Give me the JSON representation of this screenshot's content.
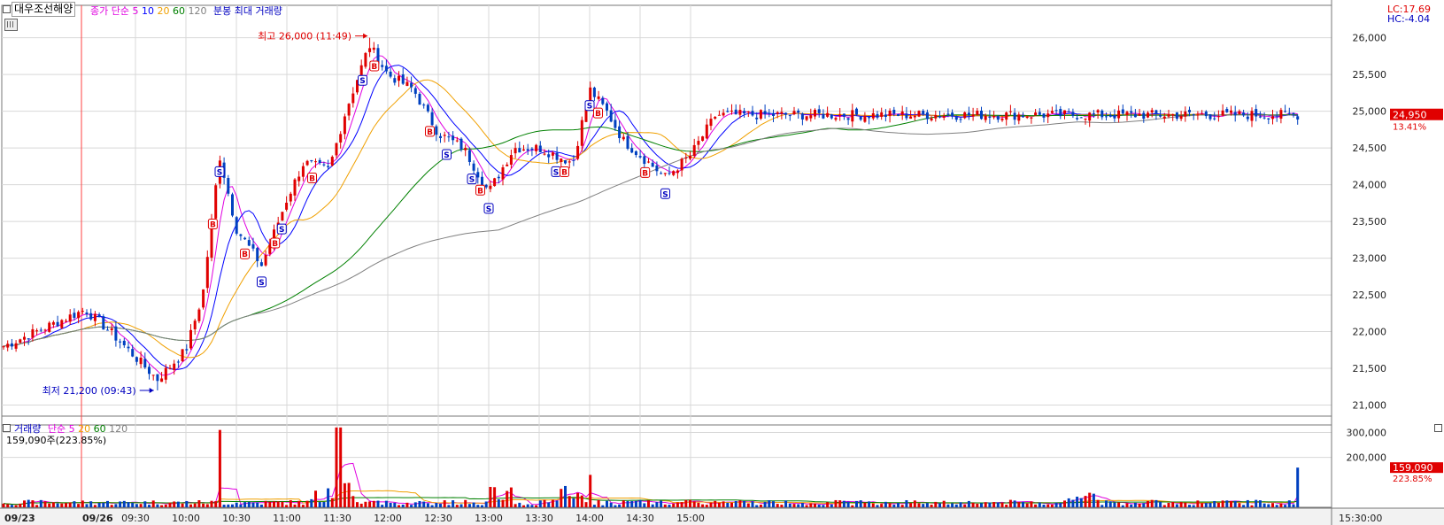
{
  "header": {
    "stock_name": "대우조선해양",
    "ma_label": "종가 단순",
    "ma_periods": [
      "5",
      "10",
      "20",
      "60",
      "120"
    ],
    "ma_colors": [
      "#e000e0",
      "#0000ff",
      "#f0a000",
      "#008000",
      "#808080"
    ],
    "tail": "분봉 최대 거래량",
    "lc": "LC:17.69",
    "hc": "HC:-4.04"
  },
  "volume_header": {
    "label": "거래량",
    "ma_label": "단순",
    "ma_periods": [
      "5",
      "20",
      "60",
      "120"
    ],
    "ma_colors": [
      "#e000e0",
      "#f0a000",
      "#008000",
      "#808080"
    ],
    "value_text": "159,090주(223.85%)"
  },
  "price_axis": {
    "ticks": [
      "26,000",
      "25,500",
      "25,000",
      "24,500",
      "24,000",
      "23,500",
      "23,000",
      "22,500",
      "22,000",
      "21,500",
      "21,000"
    ],
    "current": "24,950",
    "current_pct": "13.41%"
  },
  "volume_axis": {
    "ticks": [
      "300,000",
      "200,000"
    ],
    "current": "159,090",
    "current_pct": "223.85%"
  },
  "time_axis": {
    "labels": [
      "09/23",
      "09/26",
      "09:30",
      "10:00",
      "10:30",
      "11:00",
      "11:30",
      "12:00",
      "12:30",
      "13:00",
      "13:30",
      "14:00",
      "14:30",
      "15:00",
      "15:30:00"
    ]
  },
  "annotations": {
    "high": "최고 26,000 (11:49)",
    "low": "최저 21,200 (09:43)"
  },
  "colors": {
    "up": "#e00000",
    "down": "#0040c0",
    "grid": "#d8d8d8",
    "high_label": "#e00000",
    "low_label": "#0000c0"
  },
  "chart_data": [
    {
      "type": "candlestick",
      "title": "대우조선해양 분봉",
      "ylim": [
        20850,
        26200
      ],
      "yticks": [
        21000,
        21500,
        22000,
        22500,
        23000,
        23500,
        24000,
        24500,
        25000,
        25500,
        26000
      ],
      "series_close_keypoints": [
        {
          "t": "09/23 close",
          "v": 21800
        },
        {
          "t": "09:00",
          "v": 22300
        },
        {
          "t": "09:15",
          "v": 22000
        },
        {
          "t": "09:43",
          "v": 21350
        },
        {
          "t": "10:00",
          "v": 21750
        },
        {
          "t": "10:10",
          "v": 22500
        },
        {
          "t": "10:20",
          "v": 24400
        },
        {
          "t": "10:30",
          "v": 23400
        },
        {
          "t": "10:45",
          "v": 22900
        },
        {
          "t": "11:00",
          "v": 23800
        },
        {
          "t": "11:10",
          "v": 24300
        },
        {
          "t": "11:25",
          "v": 24200
        },
        {
          "t": "11:35",
          "v": 25000
        },
        {
          "t": "11:49",
          "v": 25900
        },
        {
          "t": "12:00",
          "v": 25500
        },
        {
          "t": "12:15",
          "v": 25300
        },
        {
          "t": "12:30",
          "v": 24700
        },
        {
          "t": "12:45",
          "v": 24500
        },
        {
          "t": "13:00",
          "v": 23900
        },
        {
          "t": "13:15",
          "v": 24500
        },
        {
          "t": "13:30",
          "v": 24500
        },
        {
          "t": "13:50",
          "v": 24300
        },
        {
          "t": "14:00",
          "v": 25300
        },
        {
          "t": "14:10",
          "v": 25000
        },
        {
          "t": "14:20",
          "v": 24600
        },
        {
          "t": "14:35",
          "v": 24300
        },
        {
          "t": "14:45",
          "v": 24100
        },
        {
          "t": "15:00",
          "v": 24400
        },
        {
          "t": "15:15",
          "v": 24950
        }
      ],
      "high": {
        "value": 26000,
        "time": "11:49"
      },
      "low": {
        "value": 21200,
        "time": "09:43"
      },
      "last": 24950,
      "moving_averages": [
        "5",
        "10",
        "20",
        "60",
        "120"
      ]
    },
    {
      "type": "bar",
      "title": "거래량",
      "ylim": [
        0,
        330000
      ],
      "yticks": [
        200000,
        300000
      ],
      "last": 159090,
      "last_pct": "223.85%",
      "peaks": [
        {
          "t": "10:20",
          "v": 310000
        },
        {
          "t": "11:31",
          "v": 320000
        },
        {
          "t": "14:00",
          "v": 130000
        }
      ]
    }
  ]
}
